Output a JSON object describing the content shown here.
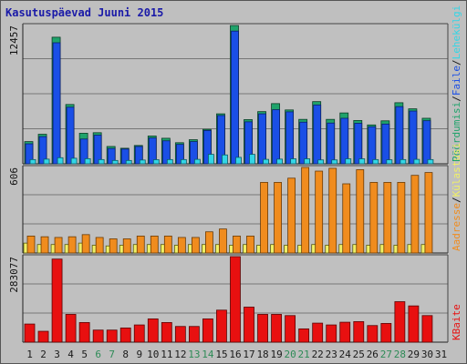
{
  "title": "Kasutuspäevad Juuni 2015",
  "colors": {
    "background": "#bfbfbf",
    "hits": "#1fa36b",
    "files": "#1a4fe6",
    "pages": "#33d6e6",
    "visits": "#f0f066",
    "sites": "#f0f066",
    "kbytes": "#e81010",
    "weekend_label": "#2e8b57",
    "weekday_label": "#1a1a1a"
  },
  "chart_data": [
    {
      "type": "bar",
      "id": "top",
      "ymax_label": "12457",
      "ylim": [
        0,
        12457
      ],
      "categories": [
        "1",
        "2",
        "3",
        "4",
        "5",
        "6",
        "7",
        "8",
        "9",
        "10",
        "11",
        "12",
        "13",
        "14",
        "15",
        "16",
        "17",
        "18",
        "19",
        "20",
        "21",
        "22",
        "23",
        "24",
        "25",
        "26",
        "27",
        "28",
        "29",
        "30",
        "31"
      ],
      "series": [
        {
          "name": "Pöördumisi",
          "color": "#1fa36b",
          "values": [
            2000,
            2660,
            11400,
            5340,
            2750,
            2800,
            1560,
            1400,
            1650,
            2500,
            2300,
            1900,
            2170,
            3100,
            4500,
            12457,
            3980,
            4700,
            5420,
            4850,
            4000,
            5600,
            4000,
            4580,
            3900,
            3500,
            3870,
            5500,
            4950,
            4100,
            0
          ]
        },
        {
          "name": "Faile",
          "color": "#1a4fe6",
          "values": [
            1800,
            2450,
            10900,
            5100,
            2230,
            2580,
            1380,
            1330,
            1560,
            2330,
            2070,
            1750,
            2000,
            3000,
            4350,
            11950,
            3780,
            4500,
            4870,
            4680,
            3750,
            5300,
            3670,
            4100,
            3650,
            3340,
            3580,
            5150,
            4750,
            3880,
            0
          ]
        },
        {
          "name": "Lehekülgi",
          "color": "#33d6e6",
          "values": [
            380,
            420,
            550,
            500,
            460,
            380,
            300,
            300,
            340,
            370,
            380,
            380,
            400,
            850,
            800,
            580,
            850,
            400,
            420,
            450,
            450,
            350,
            350,
            450,
            450,
            380,
            360,
            380,
            400,
            380,
            0
          ]
        }
      ]
    },
    {
      "type": "bar",
      "id": "middle",
      "ymax_label": "606",
      "ylim": [
        0,
        606
      ],
      "categories": [
        "1",
        "2",
        "3",
        "4",
        "5",
        "6",
        "7",
        "8",
        "9",
        "10",
        "11",
        "12",
        "13",
        "14",
        "15",
        "16",
        "17",
        "18",
        "19",
        "20",
        "21",
        "22",
        "23",
        "24",
        "25",
        "26",
        "27",
        "28",
        "29",
        "30",
        "31"
      ],
      "series": [
        {
          "name": "Külastusi",
          "color": "#f0f066",
          "values": [
            70,
            60,
            60,
            60,
            70,
            55,
            50,
            55,
            60,
            60,
            60,
            55,
            60,
            60,
            60,
            55,
            60,
            55,
            60,
            55,
            55,
            60,
            55,
            60,
            60,
            55,
            60,
            55,
            60,
            60,
            0
          ]
        },
        {
          "name": "Aadresse",
          "color": "#f08c1e",
          "values": [
            120,
            115,
            110,
            115,
            130,
            110,
            100,
            100,
            120,
            120,
            120,
            110,
            110,
            150,
            170,
            120,
            120,
            500,
            500,
            530,
            606,
            580,
            600,
            490,
            590,
            500,
            500,
            500,
            550,
            570,
            0
          ]
        }
      ]
    },
    {
      "type": "bar",
      "id": "bottom",
      "ymax_label": "283077",
      "ylim": [
        0,
        283077
      ],
      "categories": [
        "1",
        "2",
        "3",
        "4",
        "5",
        "6",
        "7",
        "8",
        "9",
        "10",
        "11",
        "12",
        "13",
        "14",
        "15",
        "16",
        "17",
        "18",
        "19",
        "20",
        "21",
        "22",
        "23",
        "24",
        "25",
        "26",
        "27",
        "28",
        "29",
        "30",
        "31"
      ],
      "series": [
        {
          "name": "KBaite",
          "color": "#e81010",
          "values": [
            60000,
            36000,
            275000,
            92000,
            65000,
            40000,
            40000,
            47000,
            57000,
            77000,
            65000,
            52000,
            52000,
            77000,
            106000,
            283077,
            116000,
            92000,
            92000,
            88000,
            44000,
            63000,
            57000,
            66000,
            68000,
            55000,
            62000,
            134000,
            120000,
            88000,
            0
          ]
        }
      ]
    }
  ],
  "x_labels": [
    {
      "text": "1",
      "weekend": false
    },
    {
      "text": "2",
      "weekend": false
    },
    {
      "text": "3",
      "weekend": false
    },
    {
      "text": "4",
      "weekend": false
    },
    {
      "text": "5",
      "weekend": false
    },
    {
      "text": "6",
      "weekend": true
    },
    {
      "text": "7",
      "weekend": true
    },
    {
      "text": "8",
      "weekend": false
    },
    {
      "text": "9",
      "weekend": false
    },
    {
      "text": "10",
      "weekend": false
    },
    {
      "text": "11",
      "weekend": false
    },
    {
      "text": "12",
      "weekend": false
    },
    {
      "text": "13",
      "weekend": true
    },
    {
      "text": "14",
      "weekend": true
    },
    {
      "text": "15",
      "weekend": false
    },
    {
      "text": "16",
      "weekend": false
    },
    {
      "text": "17",
      "weekend": false
    },
    {
      "text": "18",
      "weekend": false
    },
    {
      "text": "19",
      "weekend": false
    },
    {
      "text": "20",
      "weekend": true
    },
    {
      "text": "21",
      "weekend": true
    },
    {
      "text": "22",
      "weekend": false
    },
    {
      "text": "23",
      "weekend": false
    },
    {
      "text": "24",
      "weekend": false
    },
    {
      "text": "25",
      "weekend": false
    },
    {
      "text": "26",
      "weekend": false
    },
    {
      "text": "27",
      "weekend": true
    },
    {
      "text": "28",
      "weekend": true
    },
    {
      "text": "29",
      "weekend": false
    },
    {
      "text": "30",
      "weekend": false
    },
    {
      "text": "31",
      "weekend": false
    }
  ],
  "legend_top": [
    {
      "text": "Pöördumisi",
      "color": "#1fa36b"
    },
    {
      "text": "/",
      "color": "#1a1a1a"
    },
    {
      "text": "Faile",
      "color": "#1a4fe6"
    },
    {
      "text": "/",
      "color": "#1a1a1a"
    },
    {
      "text": "Lehekülgi",
      "color": "#33d6e6"
    }
  ],
  "legend_middle": [
    {
      "text": "Aadresse",
      "color": "#f08c1e"
    },
    {
      "text": "/",
      "color": "#1a1a1a"
    },
    {
      "text": "Külastusi",
      "color": "#f0f066"
    }
  ],
  "legend_bottom": [
    {
      "text": "KBaite",
      "color": "#e81010"
    }
  ]
}
